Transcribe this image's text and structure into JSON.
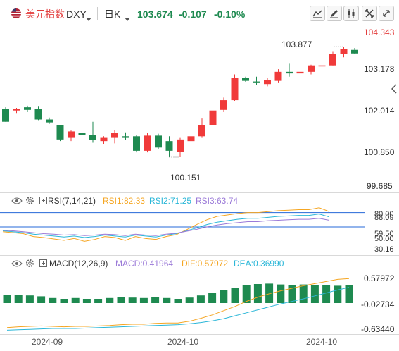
{
  "toolbar": {
    "title": "美元指数",
    "symbol": "DXY",
    "period": "日K",
    "price": "103.674",
    "change": "-0.107",
    "change_pct": "-0.10%",
    "icons": [
      "flag-icon",
      "line-tool-icon",
      "pen-icon",
      "candlestick-icon",
      "fullscreen-icon"
    ]
  },
  "colors": {
    "up": "#f03a3a",
    "down": "#1e8a50",
    "accent": "#2468d8",
    "rsi1": "#f5a623",
    "rsi2": "#2bb7d8",
    "rsi3": "#9b7ad8",
    "macd": "#9b7ad8",
    "dif": "#f5a623",
    "dea": "#2bb7d8"
  },
  "price_axis": {
    "top_label": "104.343",
    "labels": [
      "103.178",
      "102.014",
      "100.850",
      "99.685"
    ]
  },
  "annotations": {
    "high": "103.877",
    "low": "100.151"
  },
  "rsi": {
    "name": "RSI(7,14,21)",
    "rsi1": "RSI1:82.33",
    "rsi2": "RSI2:71.25",
    "rsi3": "RSI3:63.74",
    "axis": [
      "80.00",
      "88.09",
      "59.50",
      "50.00",
      "30.16"
    ]
  },
  "macd": {
    "name": "MACD(12,26,9)",
    "macd": "MACD:0.41964",
    "dif": "DIF:0.57972",
    "dea": "DEA:0.36990",
    "axis": [
      "0.57972",
      "-0.02734",
      "-0.63440"
    ]
  },
  "time_axis": [
    "2024-09",
    "2024-10",
    "2024-10"
  ],
  "chart_data": [
    {
      "type": "candlestick",
      "title": "",
      "ylim": [
        99.685,
        104.343
      ],
      "candles": [
        {
          "o": 101.95,
          "h": 102.0,
          "l": 101.55,
          "c": 101.55
        },
        {
          "o": 101.9,
          "h": 101.98,
          "l": 101.8,
          "c": 101.95
        },
        {
          "o": 102.0,
          "h": 102.05,
          "l": 101.85,
          "c": 101.92
        },
        {
          "o": 101.95,
          "h": 102.02,
          "l": 101.6,
          "c": 101.62
        },
        {
          "o": 101.62,
          "h": 101.68,
          "l": 101.48,
          "c": 101.53
        },
        {
          "o": 101.45,
          "h": 101.45,
          "l": 100.95,
          "c": 101.0
        },
        {
          "o": 101.05,
          "h": 101.28,
          "l": 100.95,
          "c": 101.25
        },
        {
          "o": 101.2,
          "h": 101.55,
          "l": 100.8,
          "c": 101.15
        },
        {
          "o": 101.15,
          "h": 101.55,
          "l": 100.9,
          "c": 100.98
        },
        {
          "o": 100.95,
          "h": 101.1,
          "l": 100.85,
          "c": 101.05
        },
        {
          "o": 101.05,
          "h": 101.3,
          "l": 100.88,
          "c": 101.2
        },
        {
          "o": 101.1,
          "h": 101.22,
          "l": 100.98,
          "c": 101.05
        },
        {
          "o": 101.1,
          "h": 101.15,
          "l": 100.6,
          "c": 100.65
        },
        {
          "o": 100.65,
          "h": 101.2,
          "l": 100.6,
          "c": 101.12
        },
        {
          "o": 101.12,
          "h": 101.18,
          "l": 100.7,
          "c": 100.75
        },
        {
          "o": 100.95,
          "h": 101.1,
          "l": 100.45,
          "c": 100.65
        },
        {
          "o": 100.62,
          "h": 101.05,
          "l": 100.45,
          "c": 101.0
        },
        {
          "o": 100.95,
          "h": 101.1,
          "l": 100.85,
          "c": 101.1
        },
        {
          "o": 101.1,
          "h": 101.65,
          "l": 101.05,
          "c": 101.45
        },
        {
          "o": 101.45,
          "h": 101.92,
          "l": 101.4,
          "c": 101.9
        },
        {
          "o": 101.92,
          "h": 102.3,
          "l": 101.85,
          "c": 102.22
        },
        {
          "o": 102.22,
          "h": 103.02,
          "l": 102.18,
          "c": 102.9
        },
        {
          "o": 102.9,
          "h": 102.95,
          "l": 102.78,
          "c": 102.82
        },
        {
          "o": 102.8,
          "h": 102.95,
          "l": 102.7,
          "c": 102.75
        },
        {
          "o": 102.72,
          "h": 102.9,
          "l": 102.65,
          "c": 102.85
        },
        {
          "o": 102.82,
          "h": 103.18,
          "l": 102.75,
          "c": 103.1
        },
        {
          "o": 103.1,
          "h": 103.35,
          "l": 102.95,
          "c": 103.05
        },
        {
          "o": 103.05,
          "h": 103.15,
          "l": 102.98,
          "c": 103.1
        },
        {
          "o": 103.1,
          "h": 103.32,
          "l": 103.02,
          "c": 103.3
        },
        {
          "o": 103.3,
          "h": 103.4,
          "l": 103.15,
          "c": 103.3
        },
        {
          "o": 103.3,
          "h": 103.72,
          "l": 103.3,
          "c": 103.65
        },
        {
          "o": 103.65,
          "h": 103.88,
          "l": 103.55,
          "c": 103.8
        },
        {
          "o": 103.78,
          "h": 103.84,
          "l": 103.65,
          "c": 103.67
        }
      ]
    },
    {
      "type": "line",
      "title": "RSI(7,14,21)",
      "ylim": [
        0,
        100
      ],
      "series": [
        {
          "name": "RSI1",
          "values": [
            40,
            38,
            36,
            30,
            28,
            25,
            22,
            26,
            20,
            24,
            30,
            28,
            22,
            30,
            26,
            24,
            30,
            34,
            44,
            55,
            65,
            72,
            75,
            78,
            80,
            80,
            82,
            84,
            85,
            86,
            86,
            90,
            82
          ]
        },
        {
          "name": "RSI2",
          "values": [
            42,
            40,
            38,
            35,
            33,
            31,
            29,
            31,
            28,
            30,
            33,
            31,
            29,
            33,
            31,
            29,
            33,
            36,
            42,
            48,
            55,
            60,
            63,
            66,
            68,
            68,
            70,
            72,
            73,
            74,
            74,
            77,
            71
          ]
        },
        {
          "name": "RSI3",
          "values": [
            43,
            42,
            40,
            38,
            36,
            35,
            33,
            34,
            32,
            33,
            35,
            34,
            32,
            35,
            33,
            32,
            35,
            37,
            41,
            45,
            50,
            54,
            57,
            59,
            61,
            61,
            63,
            64,
            65,
            66,
            66,
            68,
            64
          ]
        }
      ]
    },
    {
      "type": "bar",
      "title": "MACD(12,26,9)",
      "ylim": [
        -0.7,
        0.7
      ],
      "series": [
        {
          "name": "MACD",
          "values": [
            0.19,
            0.2,
            0.18,
            0.16,
            0.12,
            0.1,
            0.12,
            0.1,
            0.1,
            0.12,
            0.14,
            0.13,
            0.12,
            0.14,
            0.12,
            0.1,
            0.13,
            0.18,
            0.25,
            0.3,
            0.36,
            0.42,
            0.45,
            0.46,
            0.44,
            0.43,
            0.44,
            0.43,
            0.42,
            0.41,
            0.42
          ]
        },
        {
          "name": "DIF",
          "values": [
            -0.58,
            -0.56,
            -0.55,
            -0.54,
            -0.55,
            -0.56,
            -0.55,
            -0.55,
            -0.54,
            -0.53,
            -0.51,
            -0.5,
            -0.5,
            -0.48,
            -0.47,
            -0.47,
            -0.43,
            -0.36,
            -0.28,
            -0.18,
            -0.08,
            0.04,
            0.14,
            0.22,
            0.29,
            0.35,
            0.41,
            0.46,
            0.51,
            0.56,
            0.58
          ]
        },
        {
          "name": "DEA",
          "values": [
            -0.64,
            -0.63,
            -0.62,
            -0.61,
            -0.6,
            -0.6,
            -0.6,
            -0.59,
            -0.58,
            -0.57,
            -0.56,
            -0.55,
            -0.54,
            -0.53,
            -0.52,
            -0.51,
            -0.49,
            -0.46,
            -0.42,
            -0.37,
            -0.3,
            -0.23,
            -0.16,
            -0.09,
            -0.02,
            0.04,
            0.1,
            0.17,
            0.24,
            0.31,
            0.37
          ]
        }
      ]
    }
  ]
}
